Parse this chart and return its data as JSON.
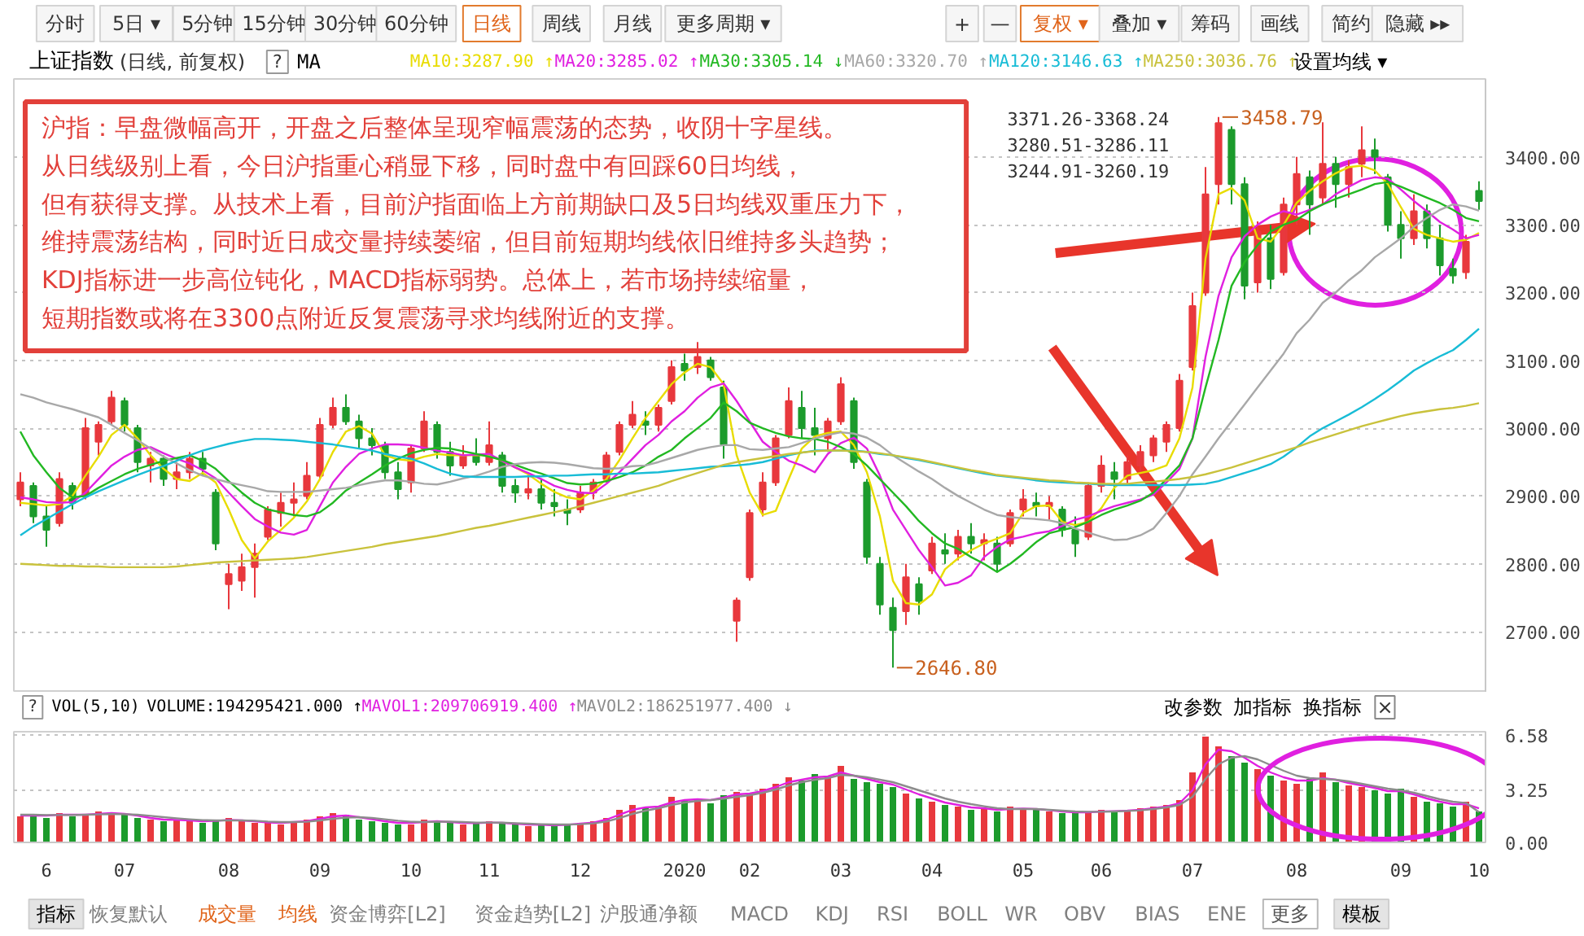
{
  "chart_data": [
    {
      "type": "other",
      "annotations": [
        "分时",
        "5日 ▾",
        "5分钟",
        "15分钟",
        "30分钟",
        "60分钟",
        "日线",
        "周线",
        "月线",
        "更多周期 ▾",
        "+",
        "—",
        "复权 ▾",
        "叠加 ▾",
        "筹码",
        "画线",
        "简约",
        "隐藏 ▸▸"
      ]
    },
    {
      "type": "candlestick",
      "title": "上证指数",
      "subtitle": "(日线, 前复权)",
      "legend_title": "MA",
      "categories": [
        null,
        null,
        "6",
        null,
        null,
        null,
        null,
        null,
        "07",
        null,
        null,
        null,
        null,
        null,
        null,
        null,
        "08",
        null,
        null,
        null,
        null,
        null,
        null,
        "09",
        null,
        null,
        null,
        null,
        null,
        null,
        "10",
        null,
        null,
        null,
        null,
        null,
        "11",
        null,
        null,
        null,
        null,
        null,
        null,
        "12",
        null,
        null,
        null,
        null,
        null,
        null,
        null,
        "2020",
        null,
        null,
        null,
        null,
        "02",
        null,
        null,
        null,
        null,
        null,
        null,
        "03",
        null,
        null,
        null,
        null,
        null,
        null,
        "04",
        null,
        null,
        null,
        null,
        null,
        null,
        "05",
        null,
        null,
        null,
        null,
        null,
        "06",
        null,
        null,
        null,
        null,
        null,
        null,
        "07",
        null,
        null,
        null,
        null,
        null,
        null,
        null,
        "08",
        null,
        null,
        null,
        null,
        null,
        null,
        null,
        "09",
        null,
        null,
        null,
        null,
        null,
        "10"
      ],
      "ohlc": [
        [
          2895,
          2935,
          2885,
          2920
        ],
        [
          2915,
          2920,
          2860,
          2870
        ],
        [
          2870,
          2885,
          2825,
          2850
        ],
        [
          2860,
          2935,
          2855,
          2925
        ],
        [
          2915,
          2920,
          2880,
          2890
        ],
        [
          2900,
          3015,
          2895,
          3000
        ],
        [
          2980,
          3010,
          2960,
          3005
        ],
        [
          3010,
          3055,
          3005,
          3045
        ],
        [
          3040,
          3045,
          2995,
          3005
        ],
        [
          3000,
          3005,
          2935,
          2950
        ],
        [
          2945,
          2965,
          2920,
          2955
        ],
        [
          2955,
          2960,
          2915,
          2925
        ],
        [
          2925,
          2950,
          2910,
          2935
        ],
        [
          2935,
          2965,
          2925,
          2955
        ],
        [
          2955,
          2965,
          2930,
          2940
        ],
        [
          2905,
          2910,
          2820,
          2830
        ],
        [
          2770,
          2800,
          2733,
          2785
        ],
        [
          2775,
          2815,
          2760,
          2795
        ],
        [
          2795,
          2830,
          2750,
          2815
        ],
        [
          2840,
          2885,
          2835,
          2880
        ],
        [
          2875,
          2905,
          2855,
          2890
        ],
        [
          2890,
          2920,
          2870,
          2895
        ],
        [
          2900,
          2950,
          2895,
          2930
        ],
        [
          2930,
          3015,
          2925,
          3005
        ],
        [
          3005,
          3045,
          3000,
          3030
        ],
        [
          3030,
          3050,
          3005,
          3010
        ],
        [
          3010,
          3020,
          2970,
          2985
        ],
        [
          2985,
          3000,
          2960,
          2975
        ],
        [
          2975,
          2980,
          2925,
          2935
        ],
        [
          2935,
          2950,
          2895,
          2910
        ],
        [
          2920,
          2975,
          2905,
          2970
        ],
        [
          2970,
          3025,
          2965,
          3010
        ],
        [
          3005,
          3010,
          2955,
          2965
        ],
        [
          2965,
          2980,
          2930,
          2945
        ],
        [
          2945,
          2975,
          2940,
          2960
        ],
        [
          2960,
          2985,
          2945,
          2950
        ],
        [
          2950,
          3010,
          2945,
          2975
        ],
        [
          2960,
          2965,
          2905,
          2915
        ],
        [
          2915,
          2925,
          2890,
          2905
        ],
        [
          2905,
          2935,
          2895,
          2910
        ],
        [
          2910,
          2925,
          2880,
          2890
        ],
        [
          2890,
          2910,
          2870,
          2885
        ],
        [
          2880,
          2895,
          2857,
          2875
        ],
        [
          2880,
          2915,
          2875,
          2905
        ],
        [
          2905,
          2925,
          2895,
          2920
        ],
        [
          2925,
          2965,
          2920,
          2960
        ],
        [
          2965,
          3010,
          2960,
          3005
        ],
        [
          3005,
          3040,
          3000,
          3020
        ],
        [
          3010,
          3025,
          2990,
          3005
        ],
        [
          3005,
          3035,
          2995,
          3030
        ],
        [
          3040,
          3100,
          3035,
          3090
        ],
        [
          3095,
          3110,
          3070,
          3085
        ],
        [
          3090,
          3127,
          3080,
          3105
        ],
        [
          3100,
          3105,
          3070,
          3075
        ],
        [
          3060,
          3070,
          2955,
          2976
        ],
        [
          2716,
          2750,
          2685,
          2746
        ],
        [
          2780,
          2880,
          2775,
          2875
        ],
        [
          2880,
          2935,
          2870,
          2920
        ],
        [
          2920,
          2990,
          2915,
          2985
        ],
        [
          2990,
          3060,
          2985,
          3040
        ],
        [
          3030,
          3055,
          2985,
          3000
        ],
        [
          3000,
          3030,
          2960,
          2990
        ],
        [
          2985,
          3015,
          2965,
          3010
        ],
        [
          3010,
          3075,
          3005,
          3065
        ],
        [
          3040,
          3045,
          2940,
          2950
        ],
        [
          2920,
          2925,
          2800,
          2810
        ],
        [
          2800,
          2810,
          2725,
          2740
        ],
        [
          2735,
          2750,
          2646.8,
          2702
        ],
        [
          2730,
          2800,
          2710,
          2780
        ],
        [
          2770,
          2780,
          2725,
          2745
        ],
        [
          2790,
          2840,
          2785,
          2830
        ],
        [
          2820,
          2845,
          2800,
          2815
        ],
        [
          2815,
          2850,
          2805,
          2840
        ],
        [
          2840,
          2860,
          2815,
          2830
        ],
        [
          2830,
          2845,
          2805,
          2835
        ],
        [
          2830,
          2840,
          2790,
          2800
        ],
        [
          2830,
          2880,
          2825,
          2875
        ],
        [
          2880,
          2910,
          2870,
          2895
        ],
        [
          2890,
          2905,
          2870,
          2885
        ],
        [
          2885,
          2900,
          2865,
          2890
        ],
        [
          2880,
          2885,
          2840,
          2850
        ],
        [
          2850,
          2870,
          2810,
          2830
        ],
        [
          2840,
          2920,
          2835,
          2915
        ],
        [
          2915,
          2960,
          2905,
          2945
        ],
        [
          2935,
          2950,
          2895,
          2925
        ],
        [
          2925,
          2960,
          2915,
          2950
        ],
        [
          2945,
          2975,
          2935,
          2965
        ],
        [
          2960,
          2990,
          2950,
          2985
        ],
        [
          2980,
          3010,
          2965,
          3005
        ],
        [
          3000,
          3080,
          2995,
          3070
        ],
        [
          3090,
          3200,
          3085,
          3180
        ],
        [
          3200,
          3385,
          3195,
          3345
        ],
        [
          3360,
          3458.79,
          3330,
          3450
        ],
        [
          3440,
          3445,
          3330,
          3360
        ],
        [
          3360,
          3370,
          3190,
          3210
        ],
        [
          3215,
          3305,
          3200,
          3290
        ],
        [
          3280,
          3300,
          3205,
          3220
        ],
        [
          3230,
          3340,
          3225,
          3330
        ],
        [
          3330,
          3400,
          3300,
          3375
        ],
        [
          3370,
          3380,
          3285,
          3330
        ],
        [
          3340,
          3451,
          3330,
          3390
        ],
        [
          3390,
          3400,
          3325,
          3360
        ],
        [
          3360,
          3395,
          3340,
          3385
        ],
        [
          3390,
          3445,
          3370,
          3410
        ],
        [
          3410,
          3427,
          3375,
          3400
        ],
        [
          3370,
          3375,
          3290,
          3300
        ],
        [
          3300,
          3320,
          3250,
          3280
        ],
        [
          3280,
          3345,
          3270,
          3320
        ],
        [
          3320,
          3330,
          3265,
          3280
        ],
        [
          3280,
          3300,
          3225,
          3240
        ],
        [
          3235,
          3250,
          3213,
          3225
        ],
        [
          3230,
          3285,
          3220,
          3275
        ],
        [
          3350,
          3364,
          3322,
          3335
        ]
      ],
      "colors": [
        "#e8383d",
        "#1c9b2c",
        "#1c9b2c",
        "#e8383d",
        "#1c9b2c",
        "#e8383d",
        "#e8383d",
        "#e8383d",
        "#1c9b2c",
        "#1c9b2c",
        "#e8383d",
        "#1c9b2c",
        "#e8383d",
        "#e8383d",
        "#1c9b2c",
        "#1c9b2c",
        "#e8383d",
        "#e8383d",
        "#e8383d",
        "#e8383d",
        "#e8383d",
        "#e8383d",
        "#e8383d",
        "#e8383d",
        "#e8383d",
        "#1c9b2c",
        "#1c9b2c",
        "#1c9b2c",
        "#1c9b2c",
        "#1c9b2c",
        "#e8383d",
        "#e8383d",
        "#1c9b2c",
        "#1c9b2c",
        "#e8383d",
        "#1c9b2c",
        "#e8383d",
        "#1c9b2c",
        "#1c9b2c",
        "#e8383d",
        "#1c9b2c",
        "#1c9b2c",
        "#1c9b2c",
        "#e8383d",
        "#e8383d",
        "#e8383d",
        "#e8383d",
        "#e8383d",
        "#1c9b2c",
        "#e8383d",
        "#e8383d",
        "#1c9b2c",
        "#e8383d",
        "#1c9b2c",
        "#1c9b2c",
        "#e8383d",
        "#e8383d",
        "#e8383d",
        "#e8383d",
        "#e8383d",
        "#1c9b2c",
        "#1c9b2c",
        "#e8383d",
        "#e8383d",
        "#1c9b2c",
        "#1c9b2c",
        "#1c9b2c",
        "#1c9b2c",
        "#e8383d",
        "#1c9b2c",
        "#e8383d",
        "#1c9b2c",
        "#e8383d",
        "#1c9b2c",
        "#e8383d",
        "#1c9b2c",
        "#e8383d",
        "#e8383d",
        "#1c9b2c",
        "#e8383d",
        "#1c9b2c",
        "#1c9b2c",
        "#e8383d",
        "#e8383d",
        "#1c9b2c",
        "#e8383d",
        "#e8383d",
        "#e8383d",
        "#e8383d",
        "#e8383d",
        "#e8383d",
        "#e8383d",
        "#e8383d",
        "#1c9b2c",
        "#1c9b2c",
        "#e8383d",
        "#1c9b2c",
        "#e8383d",
        "#e8383d",
        "#1c9b2c",
        "#e8383d",
        "#1c9b2c",
        "#e8383d",
        "#e8383d",
        "#1c9b2c",
        "#1c9b2c",
        "#1c9b2c",
        "#e8383d",
        "#1c9b2c",
        "#1c9b2c",
        "#1c9b2c",
        "#e8383d",
        "#1c9b2c"
      ],
      "series": [
        {
          "type": "line",
          "name": "MA10:3287.90 ↑",
          "color": "#e8dc00",
          "values": [
            2890,
            2888,
            2886,
            2888,
            2900,
            2930,
            2958,
            2990,
            3005,
            2985,
            2960,
            2940,
            2925,
            2922,
            2934,
            2920,
            2880,
            2835,
            2808,
            2833,
            2850,
            2868,
            2892,
            2925,
            2965,
            2995,
            3003,
            2992,
            2960,
            2954,
            2952,
            2958,
            2962,
            2960,
            2960,
            2960,
            2960,
            2952,
            2942,
            2932,
            2918,
            2906,
            2898,
            2895,
            2908,
            2925,
            2953,
            2985,
            3015,
            3040,
            3065,
            3082,
            3095,
            3090,
            3065,
            2960,
            2905,
            2872,
            2878,
            2925,
            2970,
            2988,
            2993,
            2995,
            2975,
            2935,
            2870,
            2775,
            2742,
            2740,
            2755,
            2792,
            2808,
            2820,
            2830,
            2837,
            2845,
            2875,
            2885,
            2886,
            2862,
            2857,
            2862,
            2882,
            2912,
            2930,
            2934,
            2938,
            2945,
            2985,
            3060,
            3250,
            3345,
            3354,
            3336,
            3280,
            3275,
            3300,
            3332,
            3350,
            3364,
            3376,
            3385,
            3387,
            3380,
            3360,
            3326,
            3294,
            3285,
            3280,
            3275,
            3278,
            3287.9
          ]
        },
        {
          "type": "line",
          "name": "MA20:3285.02 ↑",
          "color": "#e020e0",
          "values": [
            2898,
            2895,
            2891,
            2890,
            2891,
            2905,
            2925,
            2945,
            2958,
            2968,
            2972,
            2963,
            2955,
            2948,
            2938,
            2926,
            2905,
            2885,
            2866,
            2855,
            2846,
            2843,
            2850,
            2885,
            2920,
            2943,
            2962,
            2970,
            2976,
            2976,
            2975,
            2971,
            2967,
            2964,
            2960,
            2961,
            2962,
            2952,
            2942,
            2934,
            2925,
            2915,
            2909,
            2905,
            2904,
            2918,
            2935,
            2955,
            2975,
            2990,
            3010,
            3025,
            3045,
            3060,
            3066,
            3040,
            3010,
            2980,
            2965,
            2952,
            2945,
            2935,
            2962,
            2978,
            2986,
            2970,
            2930,
            2880,
            2850,
            2820,
            2795,
            2768,
            2772,
            2783,
            2810,
            2825,
            2836,
            2840,
            2845,
            2848,
            2856,
            2865,
            2870,
            2878,
            2885,
            2890,
            2895,
            2902,
            2920,
            2940,
            2985,
            3105,
            3195,
            3252,
            3283,
            3300,
            3312,
            3320,
            3315,
            3322,
            3330,
            3345,
            3356,
            3366,
            3370,
            3368,
            3352,
            3335,
            3320,
            3304,
            3293,
            3280,
            3285.02
          ]
        },
        {
          "type": "line",
          "name": "MA30:3305.14 ↓",
          "color": "#22b822",
          "values": [
            2995,
            2960,
            2935,
            2912,
            2898,
            2900,
            2912,
            2922,
            2932,
            2940,
            2946,
            2952,
            2956,
            2960,
            2952,
            2940,
            2922,
            2905,
            2890,
            2880,
            2876,
            2872,
            2870,
            2876,
            2890,
            2908,
            2920,
            2932,
            2945,
            2955,
            2963,
            2968,
            2971,
            2970,
            2966,
            2962,
            2958,
            2953,
            2946,
            2939,
            2933,
            2926,
            2919,
            2917,
            2918,
            2922,
            2928,
            2935,
            2945,
            2958,
            2968,
            2985,
            3000,
            3015,
            3038,
            3025,
            3008,
            3000,
            2993,
            2988,
            2985,
            2984,
            2980,
            2972,
            2962,
            2945,
            2925,
            2905,
            2885,
            2863,
            2845,
            2830,
            2822,
            2810,
            2800,
            2788,
            2800,
            2815,
            2832,
            2845,
            2850,
            2854,
            2862,
            2872,
            2880,
            2886,
            2893,
            2905,
            2925,
            2945,
            2985,
            3060,
            3130,
            3210,
            3245,
            3270,
            3290,
            3300,
            3307,
            3320,
            3330,
            3338,
            3345,
            3352,
            3360,
            3363,
            3356,
            3348,
            3340,
            3332,
            3322,
            3310,
            3305.14
          ]
        },
        {
          "type": "line",
          "name": "MA60:3320.70 ↑",
          "color": "#a8a8a8",
          "values": [
            3050,
            3045,
            3038,
            3033,
            3028,
            3022,
            3016,
            3005,
            2993,
            2982,
            2970,
            2958,
            2948,
            2938,
            2930,
            2925,
            2920,
            2916,
            2912,
            2907,
            2906,
            2906,
            2906,
            2908,
            2910,
            2912,
            2916,
            2920,
            2923,
            2923,
            2921,
            2918,
            2917,
            2921,
            2926,
            2930,
            2936,
            2943,
            2947,
            2949,
            2950,
            2949,
            2947,
            2944,
            2941,
            2940,
            2941,
            2944,
            2945,
            2950,
            2956,
            2962,
            2968,
            2972,
            2975,
            2975,
            2969,
            2968,
            2970,
            2972,
            2978,
            2985,
            2990,
            2994,
            2992,
            2986,
            2975,
            2960,
            2948,
            2936,
            2925,
            2912,
            2900,
            2890,
            2880,
            2872,
            2869,
            2867,
            2866,
            2864,
            2860,
            2852,
            2846,
            2840,
            2835,
            2836,
            2842,
            2852,
            2875,
            2900,
            2932,
            2958,
            2985,
            3010,
            3035,
            3060,
            3085,
            3110,
            3140,
            3160,
            3185,
            3200,
            3218,
            3233,
            3252,
            3266,
            3280,
            3297,
            3310,
            3322,
            3330,
            3327,
            3320.7
          ]
        },
        {
          "type": "line",
          "name": "MA120:3146.63 ↑",
          "color": "#18bcd6",
          "values": [
            2842,
            2855,
            2866,
            2877,
            2888,
            2898,
            2907,
            2915,
            2923,
            2931,
            2938,
            2944,
            2952,
            2960,
            2967,
            2972,
            2977,
            2981,
            2984,
            2984,
            2983,
            2982,
            2980,
            2978,
            2976,
            2973,
            2970,
            2967,
            2962,
            2958,
            2955,
            2948,
            2940,
            2933,
            2929,
            2928,
            2928,
            2928,
            2928,
            2929,
            2929,
            2930,
            2930,
            2931,
            2932,
            2932,
            2933,
            2933,
            2934,
            2935,
            2937,
            2939,
            2941,
            2943,
            2944,
            2945,
            2947,
            2950,
            2955,
            2960,
            2964,
            2967,
            2967,
            2967,
            2967,
            2965,
            2962,
            2960,
            2956,
            2953,
            2949,
            2945,
            2941,
            2937,
            2933,
            2930,
            2928,
            2926,
            2923,
            2921,
            2920,
            2919,
            2918,
            2917,
            2916,
            2916,
            2916,
            2916,
            2916,
            2916,
            2917,
            2918,
            2922,
            2928,
            2934,
            2940,
            2947,
            2958,
            2972,
            2988,
            3000,
            3010,
            3020,
            3031,
            3043,
            3056,
            3070,
            3085,
            3096,
            3106,
            3115,
            3130,
            3146.63
          ]
        },
        {
          "type": "line",
          "name": "MA250:3036.76 ↑",
          "color": "#c9c23c",
          "values": [
            2800,
            2799,
            2798,
            2797,
            2797,
            2796,
            2796,
            2795,
            2795,
            2795,
            2795,
            2795,
            2796,
            2798,
            2800,
            2802,
            2803,
            2804,
            2805,
            2806,
            2807,
            2808,
            2810,
            2813,
            2816,
            2819,
            2822,
            2825,
            2829,
            2832,
            2835,
            2838,
            2841,
            2845,
            2849,
            2853,
            2856,
            2860,
            2864,
            2868,
            2872,
            2876,
            2880,
            2885,
            2890,
            2895,
            2900,
            2905,
            2910,
            2915,
            2922,
            2928,
            2934,
            2940,
            2946,
            2950,
            2953,
            2956,
            2959,
            2962,
            2964,
            2966,
            2967,
            2967,
            2966,
            2965,
            2963,
            2960,
            2957,
            2954,
            2950,
            2946,
            2942,
            2938,
            2935,
            2931,
            2929,
            2927,
            2925,
            2923,
            2922,
            2920,
            2919,
            2918,
            2918,
            2918,
            2920,
            2921,
            2923,
            2925,
            2928,
            2932,
            2937,
            2942,
            2948,
            2954,
            2960,
            2966,
            2972,
            2979,
            2985,
            2991,
            2997,
            3003,
            3008,
            3013,
            3018,
            3022,
            3025,
            3028,
            3030,
            3033,
            3036.76
          ]
        }
      ],
      "ylim": [
        2610,
        3515
      ],
      "yticks": [
        {
          "value": 2700,
          "label": "2700.00"
        },
        {
          "value": 2800,
          "label": "2800.00"
        },
        {
          "value": 2900,
          "label": "2900.00"
        },
        {
          "value": 3000,
          "label": "3000.00"
        },
        {
          "value": 3100,
          "label": "3100.00"
        },
        {
          "value": 3200,
          "label": "3200.00"
        },
        {
          "value": 3300,
          "label": "3300.00"
        },
        {
          "value": 3400,
          "label": "3400.00"
        }
      ],
      "grid": "y",
      "legend": "top",
      "tick_labels": "y",
      "annotations": [
        "?",
        "设置均线 ▾",
        "沪指：早盘微幅高开，开盘之后整体呈现窄幅震荡的态势，收阴十字星线。",
        "从日线级别上看，今日沪指重心稍显下移，同时盘中有回踩60日均线，",
        "但有获得支撑。从技术上看，目前沪指面临上方前期缺口及5日均线双重压力下，",
        "维持震荡结构，同时近日成交量持续萎缩，但目前短期均线依旧维持多头趋势；",
        "KDJ指标进一步高位钝化，MACD指标弱势。总体上，若市场持续缩量，",
        "短期指数或将在3300点附近反复震荡寻求均线附近的支撑。",
        "3458.79",
        "2646.80",
        "3371.26-3368.24",
        "3280.51-3286.11",
        "3244.91-3260.19"
      ]
    },
    {
      "type": "bar",
      "title": "VOL(5,10)",
      "categories": [
        null,
        null,
        "6",
        null,
        null,
        null,
        null,
        null,
        "07",
        null,
        null,
        null,
        null,
        null,
        null,
        null,
        "08",
        null,
        null,
        null,
        null,
        null,
        null,
        "09",
        null,
        null,
        null,
        null,
        null,
        null,
        "10",
        null,
        null,
        null,
        null,
        null,
        "11",
        null,
        null,
        null,
        null,
        null,
        null,
        "12",
        null,
        null,
        null,
        null,
        null,
        null,
        null,
        "2020",
        null,
        null,
        null,
        null,
        "02",
        null,
        null,
        null,
        null,
        null,
        null,
        "03",
        null,
        null,
        null,
        null,
        null,
        null,
        "04",
        null,
        null,
        null,
        null,
        null,
        null,
        "05",
        null,
        null,
        null,
        null,
        null,
        "06",
        null,
        null,
        null,
        null,
        null,
        null,
        "07",
        null,
        null,
        null,
        null,
        null,
        null,
        null,
        "08",
        null,
        null,
        null,
        null,
        null,
        null,
        null,
        "09",
        null,
        null,
        null,
        null,
        null,
        "10"
      ],
      "series": [
        {
          "type": "bar",
          "colors": [
            "#e8383d",
            "#1c9b2c",
            "#1c9b2c",
            "#e8383d",
            "#1c9b2c",
            "#e8383d",
            "#e8383d",
            "#e8383d",
            "#1c9b2c",
            "#1c9b2c",
            "#e8383d",
            "#1c9b2c",
            "#e8383d",
            "#e8383d",
            "#1c9b2c",
            "#1c9b2c",
            "#e8383d",
            "#e8383d",
            "#e8383d",
            "#e8383d",
            "#e8383d",
            "#e8383d",
            "#e8383d",
            "#e8383d",
            "#e8383d",
            "#1c9b2c",
            "#1c9b2c",
            "#1c9b2c",
            "#1c9b2c",
            "#1c9b2c",
            "#e8383d",
            "#e8383d",
            "#1c9b2c",
            "#1c9b2c",
            "#e8383d",
            "#1c9b2c",
            "#e8383d",
            "#1c9b2c",
            "#1c9b2c",
            "#e8383d",
            "#1c9b2c",
            "#1c9b2c",
            "#1c9b2c",
            "#e8383d",
            "#e8383d",
            "#e8383d",
            "#e8383d",
            "#e8383d",
            "#1c9b2c",
            "#e8383d",
            "#e8383d",
            "#1c9b2c",
            "#e8383d",
            "#1c9b2c",
            "#1c9b2c",
            "#e8383d",
            "#e8383d",
            "#e8383d",
            "#e8383d",
            "#e8383d",
            "#1c9b2c",
            "#1c9b2c",
            "#e8383d",
            "#e8383d",
            "#1c9b2c",
            "#1c9b2c",
            "#1c9b2c",
            "#1c9b2c",
            "#e8383d",
            "#1c9b2c",
            "#e8383d",
            "#1c9b2c",
            "#e8383d",
            "#1c9b2c",
            "#e8383d",
            "#1c9b2c",
            "#e8383d",
            "#e8383d",
            "#1c9b2c",
            "#e8383d",
            "#1c9b2c",
            "#1c9b2c",
            "#e8383d",
            "#e8383d",
            "#1c9b2c",
            "#e8383d",
            "#e8383d",
            "#e8383d",
            "#e8383d",
            "#e8383d",
            "#e8383d",
            "#e8383d",
            "#e8383d",
            "#1c9b2c",
            "#1c9b2c",
            "#e8383d",
            "#1c9b2c",
            "#e8383d",
            "#e8383d",
            "#1c9b2c",
            "#e8383d",
            "#1c9b2c",
            "#e8383d",
            "#e8383d",
            "#1c9b2c",
            "#1c9b2c",
            "#1c9b2c",
            "#e8383d",
            "#1c9b2c",
            "#1c9b2c",
            "#1c9b2c",
            "#e8383d",
            "#1c9b2c"
          ],
          "values": [
            1.6,
            1.7,
            1.5,
            1.8,
            1.6,
            1.7,
            1.9,
            1.8,
            1.7,
            1.5,
            1.4,
            1.3,
            1.4,
            1.3,
            1.2,
            1.4,
            1.5,
            1.3,
            1.2,
            1.2,
            1.1,
            1.3,
            1.4,
            1.6,
            1.8,
            1.7,
            1.4,
            1.3,
            1.2,
            1.1,
            1.1,
            1.4,
            1.3,
            1.2,
            1.1,
            1.2,
            1.3,
            1.2,
            1.1,
            1.0,
            1.1,
            1.0,
            1.1,
            1.2,
            1.3,
            1.5,
            2.0,
            2.3,
            2.1,
            2.2,
            2.8,
            2.6,
            2.7,
            2.4,
            2.9,
            3.1,
            3.0,
            3.3,
            3.6,
            4.0,
            3.8,
            4.2,
            4.0,
            4.7,
            3.9,
            3.7,
            3.6,
            3.4,
            3.0,
            2.7,
            2.5,
            2.3,
            2.2,
            2.0,
            2.1,
            1.9,
            2.2,
            2.1,
            2.0,
            1.9,
            1.8,
            1.8,
            1.9,
            2.0,
            1.9,
            2.0,
            2.1,
            2.2,
            2.3,
            2.6,
            4.3,
            6.5,
            5.9,
            5.3,
            4.9,
            4.5,
            4.1,
            3.8,
            3.6,
            3.9,
            4.3,
            3.7,
            3.5,
            3.4,
            3.2,
            3.0,
            3.3,
            2.8,
            2.5,
            2.4,
            2.2,
            2.5,
            1.9
          ]
        },
        {
          "type": "line",
          "name": "MAVOL1:209706919.400 ↑",
          "color": "#e020e0",
          "values": [
            1.65,
            1.65,
            1.65,
            1.7,
            1.7,
            1.7,
            1.75,
            1.8,
            1.75,
            1.65,
            1.5,
            1.4,
            1.38,
            1.35,
            1.3,
            1.32,
            1.38,
            1.35,
            1.3,
            1.22,
            1.2,
            1.25,
            1.3,
            1.45,
            1.6,
            1.65,
            1.55,
            1.42,
            1.3,
            1.2,
            1.2,
            1.25,
            1.3,
            1.25,
            1.2,
            1.18,
            1.22,
            1.2,
            1.15,
            1.1,
            1.08,
            1.05,
            1.08,
            1.15,
            1.22,
            1.4,
            1.7,
            2.0,
            2.15,
            2.2,
            2.45,
            2.6,
            2.65,
            2.6,
            2.75,
            2.95,
            3.0,
            3.15,
            3.4,
            3.7,
            3.85,
            4.0,
            4.05,
            4.3,
            4.1,
            3.9,
            3.7,
            3.55,
            3.25,
            2.95,
            2.7,
            2.45,
            2.3,
            2.15,
            2.1,
            2.0,
            2.05,
            2.08,
            2.05,
            1.98,
            1.9,
            1.85,
            1.85,
            1.9,
            1.92,
            1.95,
            2.0,
            2.1,
            2.2,
            2.4,
            3.2,
            4.8,
            5.7,
            5.6,
            5.2,
            4.7,
            4.3,
            4.0,
            3.8,
            3.8,
            3.95,
            3.85,
            3.65,
            3.5,
            3.35,
            3.15,
            3.15,
            2.95,
            2.7,
            2.5,
            2.35,
            2.35,
            2.097
          ]
        },
        {
          "type": "line",
          "name": "MAVOL2:186251977.400 ↓",
          "color": "#8c8c8c",
          "values": [
            1.7,
            1.7,
            1.68,
            1.68,
            1.68,
            1.7,
            1.72,
            1.74,
            1.73,
            1.7,
            1.63,
            1.55,
            1.48,
            1.42,
            1.37,
            1.35,
            1.35,
            1.35,
            1.33,
            1.28,
            1.25,
            1.25,
            1.27,
            1.35,
            1.45,
            1.52,
            1.55,
            1.5,
            1.42,
            1.33,
            1.27,
            1.25,
            1.27,
            1.28,
            1.25,
            1.22,
            1.22,
            1.21,
            1.18,
            1.15,
            1.12,
            1.1,
            1.1,
            1.12,
            1.17,
            1.28,
            1.5,
            1.75,
            1.95,
            2.1,
            2.3,
            2.45,
            2.55,
            2.6,
            2.68,
            2.8,
            2.9,
            3.05,
            3.25,
            3.5,
            3.7,
            3.85,
            3.95,
            4.15,
            4.1,
            4.0,
            3.85,
            3.7,
            3.45,
            3.2,
            2.95,
            2.7,
            2.5,
            2.35,
            2.22,
            2.1,
            2.05,
            2.05,
            2.05,
            2.0,
            1.95,
            1.9,
            1.88,
            1.88,
            1.9,
            1.93,
            1.97,
            2.05,
            2.15,
            2.3,
            2.8,
            3.9,
            4.8,
            5.2,
            5.3,
            5.1,
            4.75,
            4.4,
            4.1,
            3.95,
            3.9,
            3.85,
            3.75,
            3.6,
            3.45,
            3.3,
            3.2,
            3.05,
            2.85,
            2.65,
            2.5,
            2.42,
            1.863
          ]
        }
      ],
      "ylim": [
        0,
        6.8
      ],
      "yticks": [
        {
          "value": 0,
          "label": "0.00"
        },
        {
          "value": 3.25,
          "label": "3.25"
        },
        {
          "value": 6.58,
          "label": "6.58"
        }
      ],
      "grid": "y",
      "legend": "top",
      "annotations": [
        "?",
        "VOLUME:194295421.000 ↑",
        "改参数",
        "加指标",
        "换指标",
        "×"
      ]
    },
    {
      "type": "other",
      "annotations": [
        "指标",
        "恢复默认",
        "成交量",
        "均线",
        "资金博弈[L2]",
        "资金趋势[L2]",
        "沪股通净额",
        "MACD",
        "KDJ",
        "RSI",
        "BOLL",
        "WR",
        "OBV",
        "BIAS",
        "ENE",
        "更多",
        "模板"
      ]
    }
  ]
}
